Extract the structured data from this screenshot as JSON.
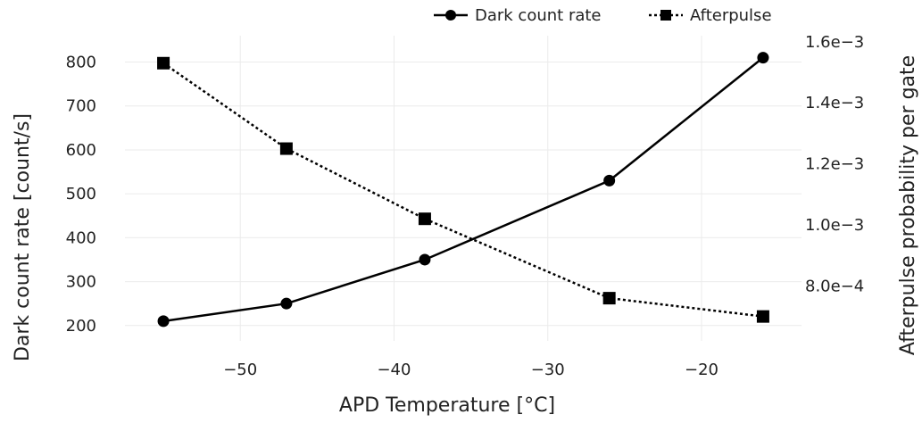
{
  "chart_data": {
    "type": "line",
    "x": [
      -55,
      -47,
      -38,
      -26,
      -16
    ],
    "series": [
      {
        "name": "Dark count rate",
        "axis": "left",
        "marker": "circle",
        "line_style": "solid",
        "values": [
          210,
          250,
          350,
          530,
          810
        ]
      },
      {
        "name": "Afterpulse",
        "axis": "right",
        "marker": "square",
        "line_style": "dotted",
        "values": [
          0.00153,
          0.00125,
          0.00102,
          0.00076,
          0.0007
        ]
      }
    ],
    "xlabel": "APD Temperature [°C]",
    "ylabel": "Dark count rate [count/s]",
    "y2label": "Afterpulse probability per gate",
    "xlim": [
      -57.5,
      -13.5
    ],
    "ylim": [
      165,
      860
    ],
    "y2lim": [
      0.00062,
      0.00162
    ],
    "x_ticks": [
      -50,
      -40,
      -30,
      -20
    ],
    "x_tick_labels": [
      "−50",
      "−40",
      "−30",
      "−20"
    ],
    "y_ticks": [
      200,
      300,
      400,
      500,
      600,
      700,
      800
    ],
    "y_tick_labels": [
      "200",
      "300",
      "400",
      "500",
      "600",
      "700",
      "800"
    ],
    "y2_ticks": [
      0.0008,
      0.001,
      0.0012,
      0.0014,
      0.0016
    ],
    "y2_tick_labels": [
      "8.0e−4",
      "1.0e−3",
      "1.2e−3",
      "1.4e−3",
      "1.6e−3"
    ],
    "grid": true,
    "legend_position": "top-right",
    "line_color": "#000000"
  }
}
